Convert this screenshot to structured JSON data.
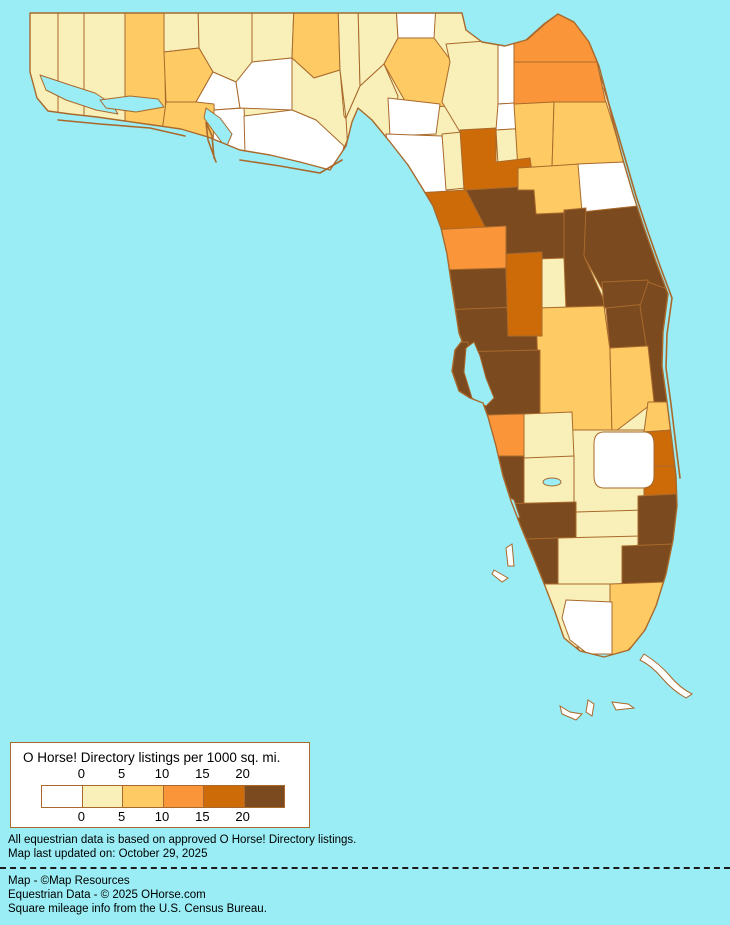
{
  "colors": {
    "water": "#9AEDF4",
    "county_border": "#A9692C",
    "text": "#000000"
  },
  "map": {
    "region_name": "Florida county choropleth",
    "categories": {
      "c0": {
        "range_label": "0",
        "color": "#FFFFFF"
      },
      "c1": {
        "range_label": "0-5",
        "color": "#F8F0B8"
      },
      "c2": {
        "range_label": "5-10",
        "color": "#FDCA63"
      },
      "c3": {
        "range_label": "10-15",
        "color": "#FA9639"
      },
      "c4": {
        "range_label": "15-20",
        "color": "#CC6B07"
      },
      "c5": {
        "range_label": "20+",
        "color": "#7C4A1F"
      }
    },
    "counties": {
      "escambia": "c1",
      "santa_rosa": "c1",
      "okaloosa": "c1",
      "walton": "c2",
      "holmes": "c1",
      "washington": "c2",
      "bay": "c2",
      "jackson": "c1",
      "calhoun": "c0",
      "gulf": "c0",
      "gadsden": "c1",
      "liberty": "c0",
      "franklin": "c0",
      "leon": "c2",
      "wakulla": "c1",
      "jefferson": "c1",
      "madison": "c1",
      "taylor": "c1",
      "hamilton": "c0",
      "suwannee": "c2",
      "lafayette": "c0",
      "dixie": "c0",
      "columbia": "c1",
      "baker": "c0",
      "union": "c0",
      "bradford": "c1",
      "nassau": "c3",
      "duval": "c3",
      "clay": "c2",
      "st_johns": "c2",
      "putnam": "c2",
      "flagler": "c0",
      "gilchrist": "c1",
      "alachua": "c4",
      "levy": "c4",
      "marion": "c5",
      "volusia": "c5",
      "lake": "c5",
      "seminole": "c5",
      "orange": "c5",
      "citrus": "c3",
      "hernando": "c5",
      "sumter": "c4",
      "pasco": "c5",
      "pinellas": "c5",
      "hillsborough": "c5",
      "polk": "c2",
      "osceola": "c2",
      "brevard": "c5",
      "indian_river": "c2",
      "st_lucie": "c4",
      "martin": "c4",
      "okeechobee": "c0",
      "highlands": "c1",
      "hardee": "c1",
      "desoto": "c1",
      "manatee": "c3",
      "sarasota": "c5",
      "charlotte": "c5",
      "glades": "c1",
      "lee": "c5",
      "hendry": "c1",
      "collier": "c1",
      "palm_beach": "c5",
      "broward": "c5",
      "miami_dade": "c2",
      "monroe": "c0"
    }
  },
  "legend": {
    "title": "O Horse! Directory listings per 1000 sq. mi.",
    "tick_labels": [
      "0",
      "5",
      "10",
      "15",
      "20"
    ],
    "swatch_order": [
      "c0",
      "c1",
      "c2",
      "c3",
      "c4",
      "c5"
    ]
  },
  "notes": {
    "data_note": "All equestrian data is based on approved O Horse! Directory listings.",
    "updated_note": "Map last updated on: October 29, 2025",
    "credit_map": "Map - ©Map Resources",
    "credit_data": "Equestrian Data - © 2025 OHorse.com",
    "credit_census": "Square mileage info from the U.S. Census Bureau."
  }
}
